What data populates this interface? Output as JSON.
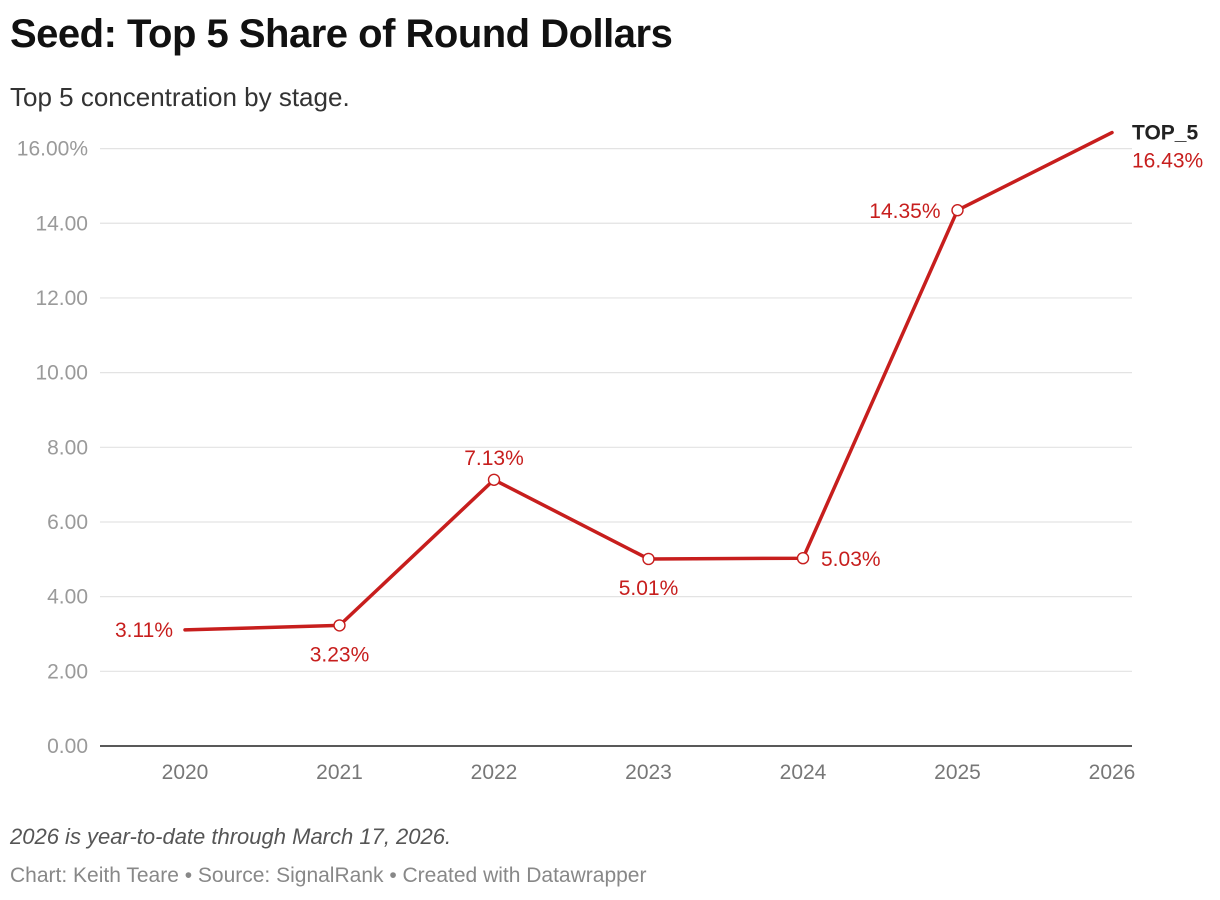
{
  "header": {
    "title": "Seed: Top 5 Share of Round Dollars",
    "subtitle": "Top 5 concentration by stage."
  },
  "footer": {
    "note": "2026 is year-to-date through March 17, 2026.",
    "byline": "Chart: Keith Teare • Source: SignalRank • Created with Datawrapper"
  },
  "colors": {
    "line": "#c71e1d",
    "grid": "#e3e3e3",
    "axis": "#222222",
    "tick": "#9a9a9a"
  },
  "chart_data": {
    "type": "line",
    "title": "Seed: Top 5 Share of Round Dollars",
    "subtitle": "Top 5 concentration by stage.",
    "xlabel": "",
    "ylabel": "",
    "categories": [
      "2020",
      "2021",
      "2022",
      "2023",
      "2024",
      "2025",
      "2026"
    ],
    "ylim": [
      0,
      16.9
    ],
    "yticks": [
      0,
      2,
      4,
      6,
      8,
      10,
      12,
      14,
      16
    ],
    "ytick_labels": [
      "0.00",
      "2.00",
      "4.00",
      "6.00",
      "8.00",
      "10.00",
      "12.00",
      "14.00",
      "16.00%"
    ],
    "grid": true,
    "series": [
      {
        "name": "TOP_5",
        "values": [
          3.11,
          3.23,
          7.13,
          5.01,
          5.03,
          14.35,
          16.43
        ],
        "labels": [
          "3.11%",
          "3.23%",
          "7.13%",
          "5.01%",
          "5.03%",
          "14.35%",
          "16.43%"
        ]
      }
    ]
  }
}
